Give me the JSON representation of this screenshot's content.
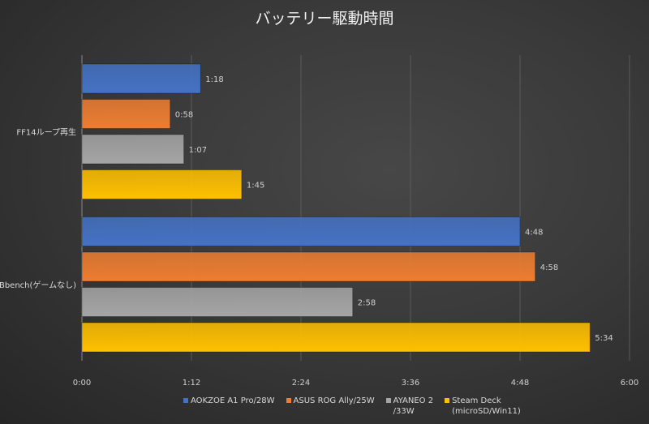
{
  "chart_data": {
    "type": "bar",
    "orientation": "horizontal",
    "title": "バッテリー駆動時間",
    "xlabel": "",
    "ylabel": "",
    "categories": [
      "FF14ループ再生",
      "Bbench(ゲームなし)"
    ],
    "series": [
      {
        "name": "AOKZOE A1 Pro/28W",
        "color": "#4472c4",
        "values": [
          "1:18",
          "4:48"
        ]
      },
      {
        "name": "ASUS ROG Ally/25W",
        "color": "#ed7d31",
        "values": [
          "0:58",
          "4:58"
        ]
      },
      {
        "name": "AYANEO 2\n/33W",
        "color": "#a5a5a5",
        "values": [
          "1:07",
          "2:58"
        ]
      },
      {
        "name": "Steam Deck\n(microSD/Win11)",
        "color": "#ffc000",
        "values": [
          "1:45",
          "5:34"
        ]
      }
    ],
    "xlim": [
      "0:00",
      "6:00"
    ],
    "xticks": [
      "0:00",
      "1:12",
      "2:24",
      "3:36",
      "4:48",
      "6:00"
    ],
    "grid": true,
    "legend": "bottom"
  }
}
